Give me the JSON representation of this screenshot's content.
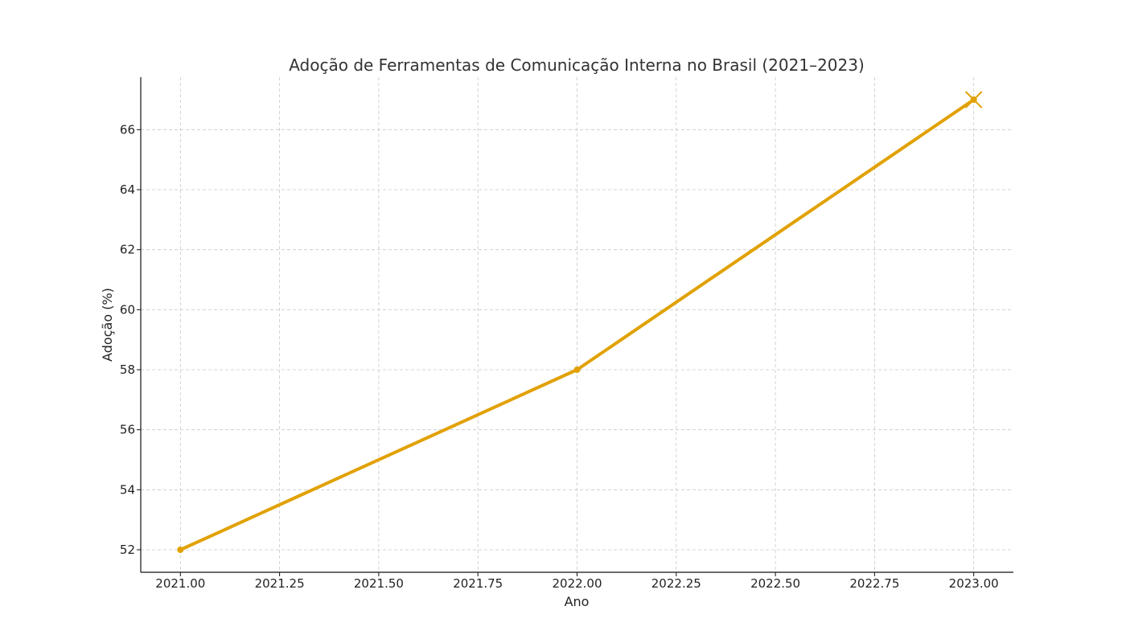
{
  "chart_data": {
    "type": "line",
    "title": "Adoção de Ferramentas de Comunicação Interna no Brasil (2021–2023)",
    "xlabel": "Ano",
    "ylabel": "Adoção (%)",
    "x": [
      2021,
      2022,
      2023
    ],
    "series": [
      {
        "values": [
          52,
          58,
          67
        ],
        "color": "#E1A100"
      }
    ],
    "highlight": {
      "x": 2023,
      "y": 67,
      "marker": "x"
    },
    "xlim": [
      2020.9,
      2023.1
    ],
    "ylim": [
      51.25,
      67.75
    ],
    "xticks": [
      2021.0,
      2021.25,
      2021.5,
      2021.75,
      2022.0,
      2022.25,
      2022.5,
      2022.75,
      2023.0
    ],
    "xtick_labels": [
      "2021.00",
      "2021.25",
      "2021.50",
      "2021.75",
      "2022.00",
      "2022.25",
      "2022.50",
      "2022.75",
      "2023.00"
    ],
    "yticks": [
      52,
      54,
      56,
      58,
      60,
      62,
      64,
      66
    ],
    "ytick_labels": [
      "52",
      "54",
      "56",
      "58",
      "60",
      "62",
      "64",
      "66"
    ],
    "grid": true,
    "legend": "none"
  }
}
